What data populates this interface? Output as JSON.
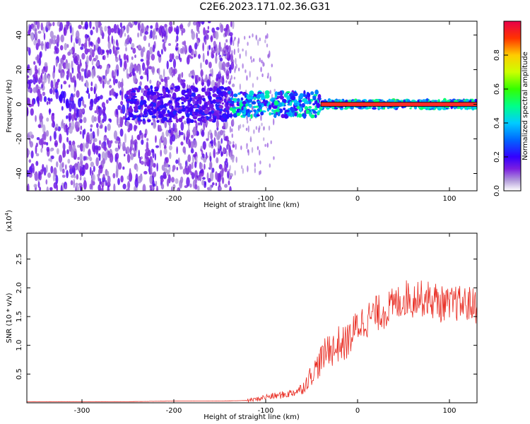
{
  "title": "C2E6.2023.171.02.36.G31",
  "colors": {
    "snr_line": "#e8281e",
    "ridge": "#ff2a2a"
  },
  "chart_data": [
    {
      "type": "heatmap",
      "name": "spectrogram",
      "xlabel": "Height of straight line (km)",
      "ylabel": "Frequency (Hz)",
      "xlim": [
        -360,
        130
      ],
      "ylim": [
        -50,
        48
      ],
      "x_ticks": [
        -300,
        -200,
        -100,
        0,
        100
      ],
      "y_ticks": [
        -40,
        -20,
        0,
        20,
        40
      ],
      "colorbar": {
        "label": "Normalized spectral amplitude",
        "range": [
          0,
          1
        ],
        "ticks": [
          "0.0",
          "0.2",
          "0.4",
          "0.6",
          "0.8"
        ],
        "tick_values": [
          0,
          0.2,
          0.4,
          0.6,
          0.8
        ],
        "colormap": "rainbow (violet to red)"
      },
      "ridge_frequency_hz": 0,
      "grid": false
    },
    {
      "type": "line",
      "name": "snr",
      "xlabel": "Height of straight line (km)",
      "ylabel": "SNR (10 * v/v)",
      "y_scale_label": "(x10",
      "y_scale_exponent": "4",
      "y_scale_suffix": ")",
      "xlim": [
        -360,
        130
      ],
      "ylim": [
        0,
        2.95
      ],
      "x_ticks": [
        -300,
        -200,
        -100,
        0,
        100
      ],
      "y_ticks": [
        "0.5",
        "1.0",
        "1.5",
        "2.0",
        "2.5"
      ],
      "y_tick_values": [
        0.5,
        1.0,
        1.5,
        2.0,
        2.5
      ],
      "series": [
        {
          "x": [
            -360,
            -300,
            -250,
            -200,
            -150,
            -120,
            -110,
            -100,
            -90,
            -80,
            -70,
            -60,
            -50,
            -45,
            -40,
            -35,
            -30,
            -25,
            -20,
            -15,
            -10,
            -5,
            0,
            10,
            20,
            30,
            40,
            50,
            55,
            60,
            65,
            70,
            75,
            80,
            85,
            90,
            95,
            100,
            105,
            110,
            120,
            130
          ],
          "y": [
            0.02,
            0.02,
            0.02,
            0.03,
            0.03,
            0.04,
            0.06,
            0.1,
            0.12,
            0.14,
            0.18,
            0.25,
            0.5,
            0.6,
            0.75,
            0.85,
            1.0,
            0.9,
            1.05,
            1.0,
            1.1,
            1.2,
            1.35,
            1.45,
            1.55,
            1.6,
            1.7,
            1.8,
            1.85,
            1.75,
            1.9,
            1.8,
            1.85,
            1.75,
            1.8,
            1.7,
            1.75,
            1.65,
            1.75,
            1.72,
            1.72,
            1.68
          ]
        }
      ],
      "grid": false
    }
  ]
}
